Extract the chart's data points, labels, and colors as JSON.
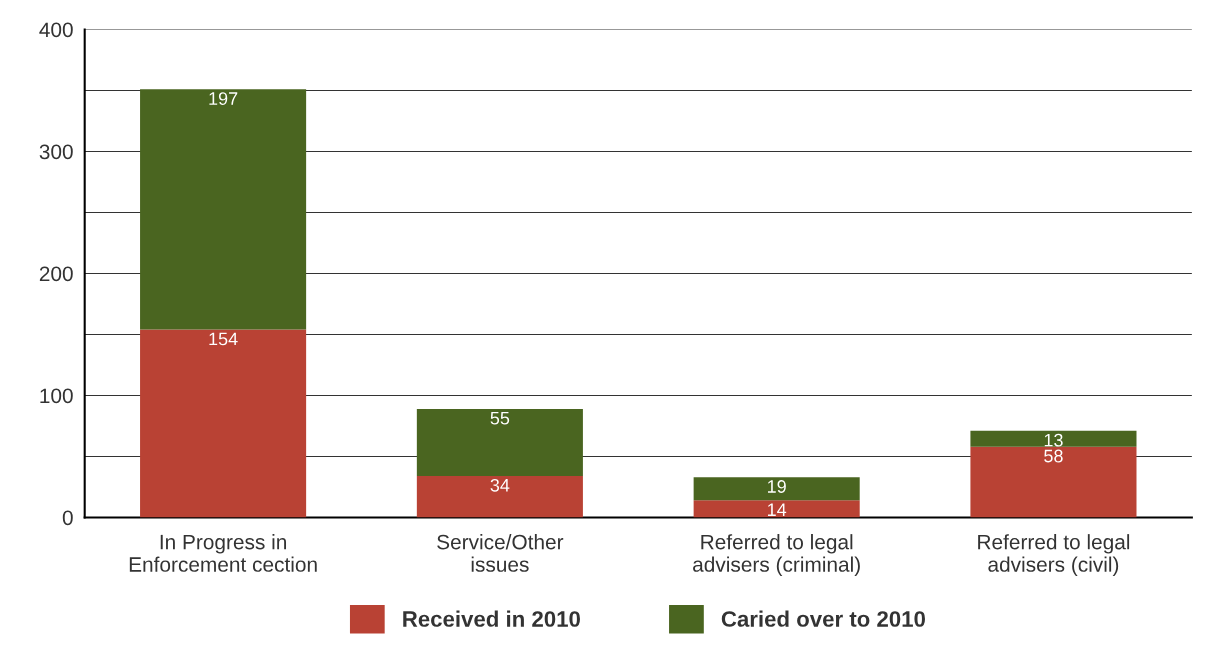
{
  "chart_data": {
    "type": "bar",
    "stacked": true,
    "categories": [
      "In Progress in\nEnforcement cection",
      "Service/Other\nissues",
      "Referred to legal\nadvisers (criminal)",
      "Referred to legal\nadvisers (civil)"
    ],
    "series": [
      {
        "name": "Received in 2010",
        "color": "#b94234",
        "values": [
          154,
          34,
          14,
          58
        ]
      },
      {
        "name": "Caried over to 2010",
        "color": "#4a6520",
        "values": [
          197,
          55,
          19,
          13
        ]
      }
    ],
    "ylim": [
      0,
      400
    ],
    "yticks": [
      0,
      {
        "value": 50,
        "label": null
      },
      100,
      {
        "value": 150,
        "label": null
      },
      200,
      {
        "value": 250,
        "label": null
      },
      300,
      {
        "value": 350,
        "label": null
      },
      400
    ],
    "grid": "y",
    "legend": "bottom",
    "data_labels": true
  }
}
